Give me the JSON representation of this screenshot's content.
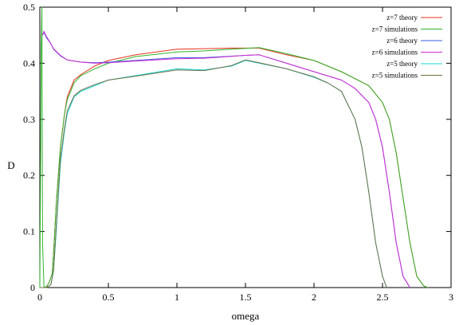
{
  "chart_data": {
    "type": "line",
    "title": "",
    "xlabel": "omega",
    "ylabel": "D",
    "xlim": [
      0,
      3
    ],
    "ylim": [
      0,
      0.5
    ],
    "x_ticks": [
      0,
      0.5,
      1,
      1.5,
      2,
      2.5,
      3
    ],
    "x_tick_labels": [
      "0",
      "0.5",
      "1",
      "1.5",
      "2",
      "2.5",
      "3"
    ],
    "y_ticks": [
      0,
      0.1,
      0.2,
      0.3,
      0.4,
      0.5
    ],
    "y_tick_labels": [
      "0",
      "0.1",
      "0.2",
      "0.3",
      "0.4",
      "0.5"
    ],
    "grid": false,
    "legend_position": "top-right",
    "series": [
      {
        "name": "z=7 theory",
        "color": "#e8311f",
        "x": [
          0.0,
          0.03,
          0.05,
          0.07,
          0.09,
          0.1,
          0.12,
          0.15,
          0.18,
          0.2,
          0.25,
          0.3,
          0.4,
          0.5,
          0.7,
          1.0,
          1.2,
          1.4,
          1.6,
          1.8,
          2.0,
          2.2,
          2.4,
          2.5,
          2.55,
          2.6,
          2.65,
          2.7,
          2.75,
          2.8,
          2.83
        ],
        "y": [
          0.0,
          0.0,
          0.001,
          0.01,
          0.025,
          0.06,
          0.15,
          0.25,
          0.31,
          0.34,
          0.37,
          0.38,
          0.395,
          0.405,
          0.415,
          0.425,
          0.426,
          0.427,
          0.427,
          0.415,
          0.405,
          0.385,
          0.36,
          0.33,
          0.3,
          0.24,
          0.16,
          0.08,
          0.02,
          0.003,
          0.0
        ]
      },
      {
        "name": "z=7 simulations",
        "color": "#2fb52a",
        "x": [
          0.0,
          0.01,
          0.015,
          0.02,
          0.03,
          0.05,
          0.07,
          0.09,
          0.1,
          0.12,
          0.15,
          0.18,
          0.2,
          0.25,
          0.3,
          0.4,
          0.5,
          0.7,
          1.0,
          1.2,
          1.4,
          1.6,
          1.8,
          2.0,
          2.2,
          2.4,
          2.5,
          2.55,
          2.6,
          2.65,
          2.7,
          2.75,
          2.8,
          2.83
        ],
        "y": [
          0.0,
          0.43,
          0.5,
          0.08,
          0.0,
          0.002,
          0.01,
          0.025,
          0.06,
          0.15,
          0.25,
          0.31,
          0.335,
          0.365,
          0.378,
          0.39,
          0.4,
          0.412,
          0.42,
          0.422,
          0.425,
          0.428,
          0.417,
          0.405,
          0.385,
          0.36,
          0.33,
          0.3,
          0.24,
          0.16,
          0.08,
          0.02,
          0.003,
          0.0
        ]
      },
      {
        "name": "z=6 theory",
        "color": "#3b5bdb",
        "x": [
          0.02,
          0.03,
          0.05,
          0.08,
          0.1,
          0.15,
          0.2,
          0.3,
          0.4,
          0.5,
          0.7,
          1.0,
          1.2,
          1.5,
          1.6,
          1.8,
          2.0,
          2.2,
          2.3,
          2.4,
          2.45,
          2.5,
          2.55,
          2.6,
          2.65,
          2.7
        ],
        "y": [
          0.45,
          0.455,
          0.445,
          0.435,
          0.425,
          0.413,
          0.406,
          0.402,
          0.401,
          0.402,
          0.405,
          0.41,
          0.41,
          0.414,
          0.415,
          0.4,
          0.385,
          0.37,
          0.355,
          0.33,
          0.3,
          0.25,
          0.17,
          0.08,
          0.02,
          0.0
        ]
      },
      {
        "name": "z=6 simulations",
        "color": "#d02bd6",
        "x": [
          0.02,
          0.03,
          0.05,
          0.08,
          0.1,
          0.15,
          0.2,
          0.3,
          0.4,
          0.5,
          0.7,
          1.0,
          1.2,
          1.5,
          1.6,
          1.8,
          2.0,
          2.2,
          2.3,
          2.4,
          2.45,
          2.5,
          2.55,
          2.6,
          2.65,
          2.7
        ],
        "y": [
          0.45,
          0.457,
          0.447,
          0.435,
          0.426,
          0.414,
          0.406,
          0.402,
          0.4,
          0.401,
          0.404,
          0.408,
          0.409,
          0.414,
          0.415,
          0.4,
          0.385,
          0.37,
          0.355,
          0.33,
          0.3,
          0.25,
          0.17,
          0.08,
          0.02,
          0.0
        ]
      },
      {
        "name": "z=5 theory",
        "color": "#19d9d6",
        "x": [
          0.0,
          0.05,
          0.08,
          0.1,
          0.12,
          0.15,
          0.18,
          0.2,
          0.25,
          0.3,
          0.4,
          0.5,
          0.7,
          1.0,
          1.2,
          1.4,
          1.5,
          1.6,
          1.8,
          2.0,
          2.1,
          2.2,
          2.3,
          2.35,
          2.4,
          2.45,
          2.5,
          2.53
        ],
        "y": [
          0.0,
          0.0,
          0.005,
          0.03,
          0.1,
          0.22,
          0.28,
          0.31,
          0.34,
          0.35,
          0.36,
          0.37,
          0.378,
          0.39,
          0.388,
          0.395,
          0.405,
          0.4,
          0.39,
          0.375,
          0.365,
          0.35,
          0.3,
          0.25,
          0.17,
          0.08,
          0.02,
          0.0
        ]
      },
      {
        "name": "z=5 simulations",
        "color": "#6f6f47",
        "x": [
          0.0,
          0.05,
          0.08,
          0.1,
          0.12,
          0.15,
          0.18,
          0.2,
          0.25,
          0.3,
          0.4,
          0.5,
          0.7,
          1.0,
          1.2,
          1.4,
          1.5,
          1.6,
          1.8,
          2.0,
          2.1,
          2.2,
          2.3,
          2.35,
          2.4,
          2.45,
          2.5,
          2.53
        ],
        "y": [
          0.0,
          0.0,
          0.005,
          0.03,
          0.11,
          0.23,
          0.285,
          0.315,
          0.342,
          0.352,
          0.362,
          0.37,
          0.377,
          0.388,
          0.387,
          0.396,
          0.406,
          0.401,
          0.39,
          0.376,
          0.365,
          0.35,
          0.3,
          0.25,
          0.17,
          0.08,
          0.02,
          0.0
        ]
      }
    ]
  }
}
